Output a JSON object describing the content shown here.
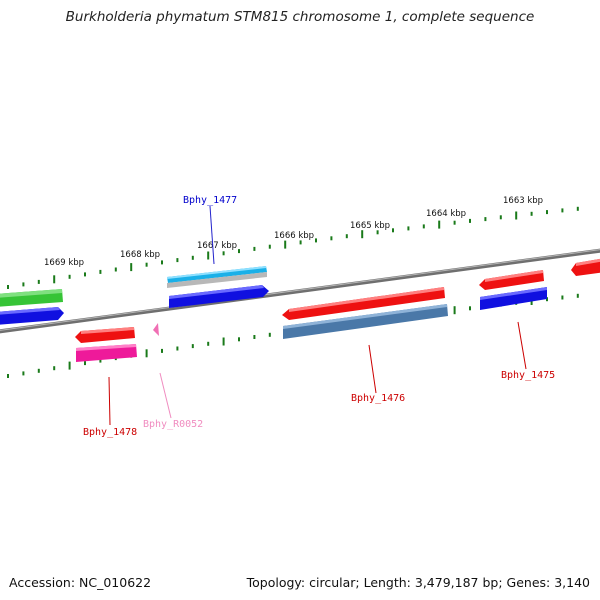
{
  "title": "Burkholderia phymatum STM815 chromosome 1, complete sequence",
  "footer": {
    "accession": "Accession: NC_010622",
    "topology": "Topology: circular; Length: 3,479,187 bp; Genes: 3,140"
  },
  "colors": {
    "backbone": "#7d7d7d",
    "tick": "#1a7a1a",
    "gene_label_red": "#cc0000",
    "gene_label_blue": "#0000cc",
    "gene_label_pink": "#f08cc0"
  },
  "scale_ticks": [
    {
      "label": "1669 kbp"
    },
    {
      "label": "1668 kbp"
    },
    {
      "label": "1667 kbp"
    },
    {
      "label": "1666 kbp"
    },
    {
      "label": "1665 kbp"
    },
    {
      "label": "1664 kbp"
    },
    {
      "label": "1663 kbp"
    }
  ],
  "genes": [
    {
      "name": "Bphy_1477",
      "color_key": "gene_label_blue"
    },
    {
      "name": "Bphy_1476",
      "color_key": "gene_label_red"
    },
    {
      "name": "Bphy_1475",
      "color_key": "gene_label_red"
    },
    {
      "name": "Bphy_1478",
      "color_key": "gene_label_red"
    },
    {
      "name": "Bphy_R0052",
      "color_key": "gene_label_pink"
    }
  ]
}
